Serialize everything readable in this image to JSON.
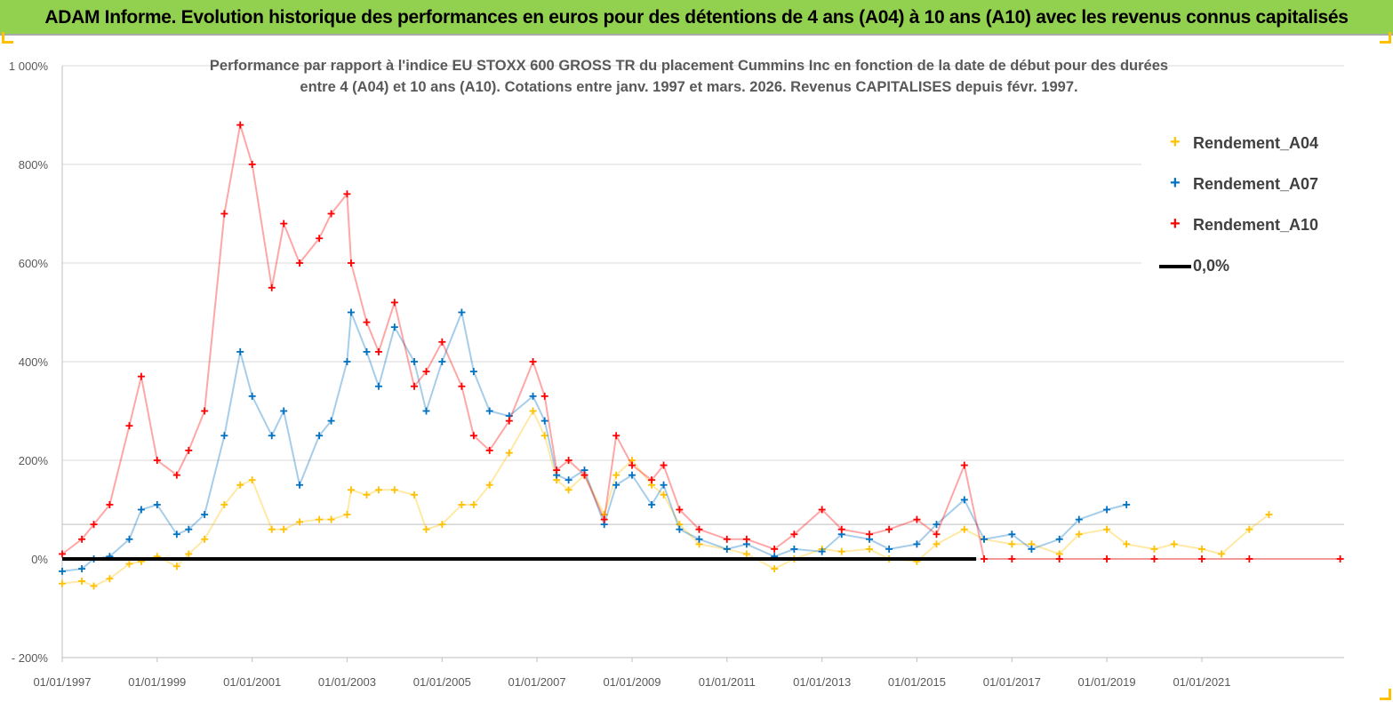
{
  "banner": {
    "title": "ADAM Informe. Evolution historique des performances en euros pour des détentions de 4 ans (A04) à 10 ans (A10) avec les revenus connus capitalisés"
  },
  "colors": {
    "banner_bg": "#92d050",
    "A04": "#ffc000",
    "A07": "#0070c0",
    "A10": "#ff0000",
    "zero_line": "#000000"
  },
  "chart_data": {
    "type": "scatter",
    "title_line1": "Performance par rapport à l'indice EU STOXX 600 GROSS TR  du placement Cummins Inc en fonction de la date de début pour des durées",
    "title_line2": "entre 4 (A04) et 10 ans (A10). Cotations entre janv. 1997 et mars. 2026. Revenus CAPITALISES depuis févr. 1997.",
    "x_axis": {
      "type": "date",
      "range": [
        "1997-01-01",
        "2023-12-31"
      ],
      "tick_labels": [
        "01/01/1997",
        "01/01/1999",
        "01/01/2001",
        "01/01/2003",
        "01/01/2005",
        "01/01/2007",
        "01/01/2009",
        "01/01/2011",
        "01/01/2013",
        "01/01/2015",
        "01/01/2017",
        "01/01/2019",
        "01/01/2021"
      ]
    },
    "y_axis": {
      "unit": "%",
      "range": [
        -200,
        1000
      ],
      "tick_values": [
        -200,
        0,
        200,
        400,
        600,
        800,
        1000
      ],
      "tick_labels": [
        "- 200%",
        "0%",
        "200%",
        "400%",
        "600%",
        "800%",
        "1 000%"
      ]
    },
    "grid": "horizontal",
    "legend": {
      "position": "right",
      "entries": [
        "Rendement_A04",
        "Rendement_A07",
        "Rendement_A10",
        "0,0%"
      ]
    },
    "series": [
      {
        "name": "Rendement_A04",
        "marker": "+",
        "points": [
          [
            "1997-01-01",
            -50
          ],
          [
            "1997-06-01",
            -45
          ],
          [
            "1997-09-01",
            -55
          ],
          [
            "1998-01-01",
            -40
          ],
          [
            "1998-06-01",
            -10
          ],
          [
            "1998-09-01",
            -5
          ],
          [
            "1999-01-01",
            5
          ],
          [
            "1999-06-01",
            -15
          ],
          [
            "1999-09-01",
            10
          ],
          [
            "2000-01-01",
            40
          ],
          [
            "2000-06-01",
            110
          ],
          [
            "2000-10-01",
            150
          ],
          [
            "2001-01-01",
            160
          ],
          [
            "2001-06-01",
            60
          ],
          [
            "2001-09-01",
            60
          ],
          [
            "2002-01-01",
            75
          ],
          [
            "2002-06-01",
            80
          ],
          [
            "2002-09-01",
            80
          ],
          [
            "2003-01-01",
            90
          ],
          [
            "2003-02-01",
            140
          ],
          [
            "2003-06-01",
            130
          ],
          [
            "2003-09-01",
            140
          ],
          [
            "2004-01-01",
            140
          ],
          [
            "2004-06-01",
            130
          ],
          [
            "2004-09-01",
            60
          ],
          [
            "2005-01-01",
            70
          ],
          [
            "2005-06-01",
            110
          ],
          [
            "2005-09-01",
            110
          ],
          [
            "2006-01-01",
            150
          ],
          [
            "2006-06-01",
            215
          ],
          [
            "2006-12-01",
            300
          ],
          [
            "2007-03-01",
            250
          ],
          [
            "2007-06-01",
            160
          ],
          [
            "2007-09-01",
            140
          ],
          [
            "2008-01-01",
            170
          ],
          [
            "2008-06-01",
            90
          ],
          [
            "2008-09-01",
            170
          ],
          [
            "2009-01-01",
            200
          ],
          [
            "2009-06-01",
            150
          ],
          [
            "2009-09-01",
            130
          ],
          [
            "2010-01-01",
            70
          ],
          [
            "2010-06-01",
            30
          ],
          [
            "2011-01-01",
            20
          ],
          [
            "2011-06-01",
            10
          ],
          [
            "2012-01-01",
            -20
          ],
          [
            "2012-06-01",
            0
          ],
          [
            "2013-01-01",
            20
          ],
          [
            "2013-06-01",
            15
          ],
          [
            "2014-01-01",
            20
          ],
          [
            "2014-06-01",
            0
          ],
          [
            "2015-01-01",
            -5
          ],
          [
            "2015-06-01",
            30
          ],
          [
            "2016-01-01",
            60
          ],
          [
            "2016-06-01",
            40
          ],
          [
            "2017-01-01",
            30
          ],
          [
            "2017-06-01",
            30
          ],
          [
            "2018-01-01",
            10
          ],
          [
            "2018-06-01",
            50
          ],
          [
            "2019-01-01",
            60
          ],
          [
            "2019-06-01",
            30
          ],
          [
            "2020-01-01",
            20
          ],
          [
            "2020-06-01",
            30
          ],
          [
            "2021-01-01",
            20
          ],
          [
            "2021-06-01",
            10
          ],
          [
            "2022-01-01",
            60
          ],
          [
            "2022-06-01",
            90
          ]
        ]
      },
      {
        "name": "Rendement_A07",
        "marker": "+",
        "points": [
          [
            "1997-01-01",
            -25
          ],
          [
            "1997-06-01",
            -20
          ],
          [
            "1997-09-01",
            0
          ],
          [
            "1998-01-01",
            5
          ],
          [
            "1998-06-01",
            40
          ],
          [
            "1998-09-01",
            100
          ],
          [
            "1999-01-01",
            110
          ],
          [
            "1999-06-01",
            50
          ],
          [
            "1999-09-01",
            60
          ],
          [
            "2000-01-01",
            90
          ],
          [
            "2000-06-01",
            250
          ],
          [
            "2000-10-01",
            420
          ],
          [
            "2001-01-01",
            330
          ],
          [
            "2001-06-01",
            250
          ],
          [
            "2001-09-01",
            300
          ],
          [
            "2002-01-01",
            150
          ],
          [
            "2002-06-01",
            250
          ],
          [
            "2002-09-01",
            280
          ],
          [
            "2003-01-01",
            400
          ],
          [
            "2003-02-01",
            500
          ],
          [
            "2003-06-01",
            420
          ],
          [
            "2003-09-01",
            350
          ],
          [
            "2004-01-01",
            470
          ],
          [
            "2004-06-01",
            400
          ],
          [
            "2004-09-01",
            300
          ],
          [
            "2005-01-01",
            400
          ],
          [
            "2005-06-01",
            500
          ],
          [
            "2005-09-01",
            380
          ],
          [
            "2006-01-01",
            300
          ],
          [
            "2006-06-01",
            290
          ],
          [
            "2006-12-01",
            330
          ],
          [
            "2007-03-01",
            280
          ],
          [
            "2007-06-01",
            170
          ],
          [
            "2007-09-01",
            160
          ],
          [
            "2008-01-01",
            180
          ],
          [
            "2008-06-01",
            70
          ],
          [
            "2008-09-01",
            150
          ],
          [
            "2009-01-01",
            170
          ],
          [
            "2009-06-01",
            110
          ],
          [
            "2009-09-01",
            150
          ],
          [
            "2010-01-01",
            60
          ],
          [
            "2010-06-01",
            40
          ],
          [
            "2011-01-01",
            20
          ],
          [
            "2011-06-01",
            30
          ],
          [
            "2012-01-01",
            5
          ],
          [
            "2012-06-01",
            20
          ],
          [
            "2013-01-01",
            15
          ],
          [
            "2013-06-01",
            50
          ],
          [
            "2014-01-01",
            40
          ],
          [
            "2014-06-01",
            20
          ],
          [
            "2015-01-01",
            30
          ],
          [
            "2015-06-01",
            70
          ],
          [
            "2016-01-01",
            120
          ],
          [
            "2016-06-01",
            40
          ],
          [
            "2017-01-01",
            50
          ],
          [
            "2017-06-01",
            20
          ],
          [
            "2018-01-01",
            40
          ],
          [
            "2018-06-01",
            80
          ],
          [
            "2019-01-01",
            100
          ],
          [
            "2019-06-01",
            110
          ]
        ]
      },
      {
        "name": "Rendement_A10",
        "marker": "+",
        "points": [
          [
            "1997-01-01",
            10
          ],
          [
            "1997-06-01",
            40
          ],
          [
            "1997-09-01",
            70
          ],
          [
            "1998-01-01",
            110
          ],
          [
            "1998-06-01",
            270
          ],
          [
            "1998-09-01",
            370
          ],
          [
            "1999-01-01",
            200
          ],
          [
            "1999-06-01",
            170
          ],
          [
            "1999-09-01",
            220
          ],
          [
            "2000-01-01",
            300
          ],
          [
            "2000-06-01",
            700
          ],
          [
            "2000-10-01",
            880
          ],
          [
            "2001-01-01",
            800
          ],
          [
            "2001-06-01",
            550
          ],
          [
            "2001-09-01",
            680
          ],
          [
            "2002-01-01",
            600
          ],
          [
            "2002-06-01",
            650
          ],
          [
            "2002-09-01",
            700
          ],
          [
            "2003-01-01",
            740
          ],
          [
            "2003-02-01",
            600
          ],
          [
            "2003-06-01",
            480
          ],
          [
            "2003-09-01",
            420
          ],
          [
            "2004-01-01",
            520
          ],
          [
            "2004-06-01",
            350
          ],
          [
            "2004-09-01",
            380
          ],
          [
            "2005-01-01",
            440
          ],
          [
            "2005-06-01",
            350
          ],
          [
            "2005-09-01",
            250
          ],
          [
            "2006-01-01",
            220
          ],
          [
            "2006-06-01",
            280
          ],
          [
            "2006-12-01",
            400
          ],
          [
            "2007-03-01",
            330
          ],
          [
            "2007-06-01",
            180
          ],
          [
            "2007-09-01",
            200
          ],
          [
            "2008-01-01",
            170
          ],
          [
            "2008-06-01",
            80
          ],
          [
            "2008-09-01",
            250
          ],
          [
            "2009-01-01",
            190
          ],
          [
            "2009-06-01",
            160
          ],
          [
            "2009-09-01",
            190
          ],
          [
            "2010-01-01",
            100
          ],
          [
            "2010-06-01",
            60
          ],
          [
            "2011-01-01",
            40
          ],
          [
            "2011-06-01",
            40
          ],
          [
            "2012-01-01",
            20
          ],
          [
            "2012-06-01",
            50
          ],
          [
            "2013-01-01",
            100
          ],
          [
            "2013-06-01",
            60
          ],
          [
            "2014-01-01",
            50
          ],
          [
            "2014-06-01",
            60
          ],
          [
            "2015-01-01",
            80
          ],
          [
            "2015-06-01",
            50
          ],
          [
            "2016-01-01",
            190
          ],
          [
            "2016-06-01",
            0
          ],
          [
            "2017-01-01",
            0
          ],
          [
            "2018-01-01",
            0
          ],
          [
            "2019-01-01",
            0
          ],
          [
            "2020-01-01",
            0
          ],
          [
            "2021-01-01",
            0
          ],
          [
            "2022-01-01",
            0
          ],
          [
            "2023-12-01",
            0
          ]
        ]
      },
      {
        "name": "0,0%",
        "style": "line",
        "points": [
          [
            "1997-01-01",
            0
          ],
          [
            "2016-04-01",
            0
          ]
        ]
      }
    ]
  }
}
